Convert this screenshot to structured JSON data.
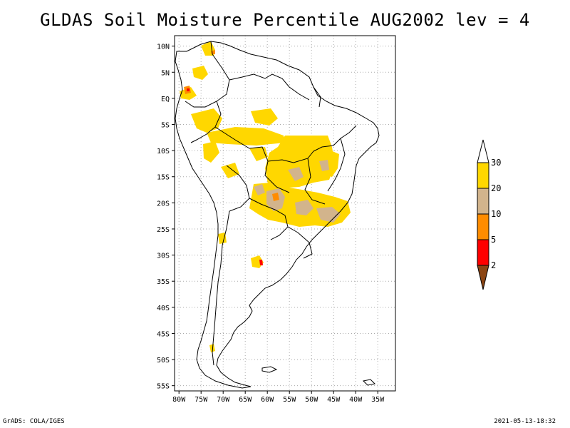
{
  "title": "GLDAS Soil Moisture Percentile AUG2002 lev = 4",
  "footer_left": "GrADS: COLA/IGES",
  "footer_right": "2021-05-13-18:32",
  "map": {
    "lon_range": [
      -81,
      -31
    ],
    "lat_range": [
      -56,
      12
    ],
    "lat_ticks": [
      {
        "value": 10,
        "label": "10N"
      },
      {
        "value": 5,
        "label": "5N"
      },
      {
        "value": 0,
        "label": "EQ"
      },
      {
        "value": -5,
        "label": "5S"
      },
      {
        "value": -10,
        "label": "10S"
      },
      {
        "value": -15,
        "label": "15S"
      },
      {
        "value": -20,
        "label": "20S"
      },
      {
        "value": -25,
        "label": "25S"
      },
      {
        "value": -30,
        "label": "30S"
      },
      {
        "value": -35,
        "label": "35S"
      },
      {
        "value": -40,
        "label": "40S"
      },
      {
        "value": -45,
        "label": "45S"
      },
      {
        "value": -50,
        "label": "50S"
      },
      {
        "value": -55,
        "label": "55S"
      }
    ],
    "lon_ticks": [
      {
        "value": -80,
        "label": "80W"
      },
      {
        "value": -75,
        "label": "75W"
      },
      {
        "value": -70,
        "label": "70W"
      },
      {
        "value": -65,
        "label": "65W"
      },
      {
        "value": -60,
        "label": "60W"
      },
      {
        "value": -55,
        "label": "55W"
      },
      {
        "value": -50,
        "label": "50W"
      },
      {
        "value": -45,
        "label": "45W"
      },
      {
        "value": -40,
        "label": "40W"
      },
      {
        "value": -35,
        "label": "35W"
      }
    ],
    "grid": true
  },
  "legend": {
    "levels": [
      "2",
      "5",
      "10",
      "20",
      "30"
    ],
    "colors": [
      "#8b4513",
      "#ff0000",
      "#ff8c00",
      "#d2b48c",
      "#ffd700",
      "#ffffff"
    ]
  },
  "colors": {
    "p30": "#ffd700",
    "p20": "#d2b48c",
    "p10": "#ff8c00",
    "p5": "#ff0000",
    "p2": "#8b4513",
    "outline": "#000000",
    "grid": "#aaaaaa"
  }
}
